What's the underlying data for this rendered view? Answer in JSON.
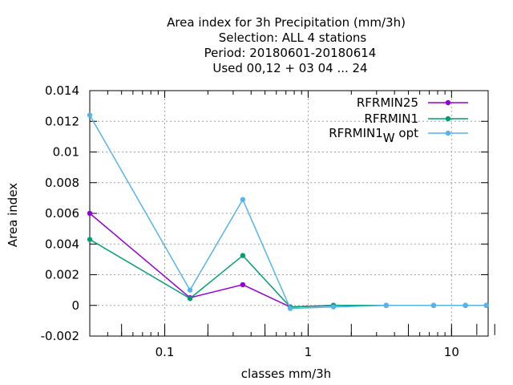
{
  "chart_data": {
    "type": "line",
    "title_lines": [
      "Area index  for 3h Precipitation (mm/3h)",
      "Selection: ALL      4 stations",
      "Period: 20180601-20180614",
      "Used  00,12  + 03 04 ... 24"
    ],
    "xlabel": "classes mm/3h",
    "ylabel": "Area index",
    "xscale": "log",
    "xlim": [
      0.03,
      18
    ],
    "ylim": [
      -0.002,
      0.014
    ],
    "grid": true,
    "legend_position": "top-right",
    "x_tick_labels": [
      {
        "value": 0.1,
        "label": "0.1"
      },
      {
        "value": 1,
        "label": "1"
      },
      {
        "value": 10,
        "label": "10"
      }
    ],
    "y_tick_labels": [
      {
        "value": -0.002,
        "label": "-0.002"
      },
      {
        "value": 0,
        "label": "0"
      },
      {
        "value": 0.002,
        "label": "0.002"
      },
      {
        "value": 0.004,
        "label": "0.004"
      },
      {
        "value": 0.006,
        "label": "0.006"
      },
      {
        "value": 0.008,
        "label": "0.008"
      },
      {
        "value": 0.01,
        "label": "0.01"
      },
      {
        "value": 0.012,
        "label": "0.012"
      },
      {
        "value": 0.014,
        "label": "0.014"
      }
    ],
    "class_ticks": [
      0.05,
      0.1,
      0.2,
      0.5,
      1,
      2,
      5,
      10,
      15,
      20
    ],
    "series": [
      {
        "name": "RFRMIN25",
        "legend_text": "RFRMIN25",
        "color": "#9400d3",
        "x": [
          0.03,
          0.15,
          0.35,
          0.75,
          1.5,
          3.5,
          7.5,
          12.5,
          17.5
        ],
        "y": [
          0.006,
          0.0005,
          0.00135,
          -0.0001,
          0.0,
          0.0,
          0.0,
          0.0,
          0.0
        ]
      },
      {
        "name": "RFRMIN1",
        "legend_text": "RFRMIN1",
        "color": "#009e73",
        "x": [
          0.03,
          0.15,
          0.35,
          0.75,
          1.5,
          3.5
        ],
        "y": [
          0.0043,
          0.00045,
          0.00325,
          -0.0001,
          0.0,
          0.0
        ]
      },
      {
        "name": "RFRMIN1_W opt",
        "legend_text": "RFRMIN1",
        "legend_sub": "W",
        "legend_after": " opt",
        "color": "#56b4e9",
        "x": [
          0.03,
          0.15,
          0.35,
          0.75,
          1.5,
          3.5,
          7.5,
          12.5,
          17.5
        ],
        "y": [
          0.0124,
          0.001,
          0.0069,
          -0.0002,
          -0.0001,
          0.0,
          0.0,
          0.0,
          0.0
        ]
      }
    ]
  }
}
